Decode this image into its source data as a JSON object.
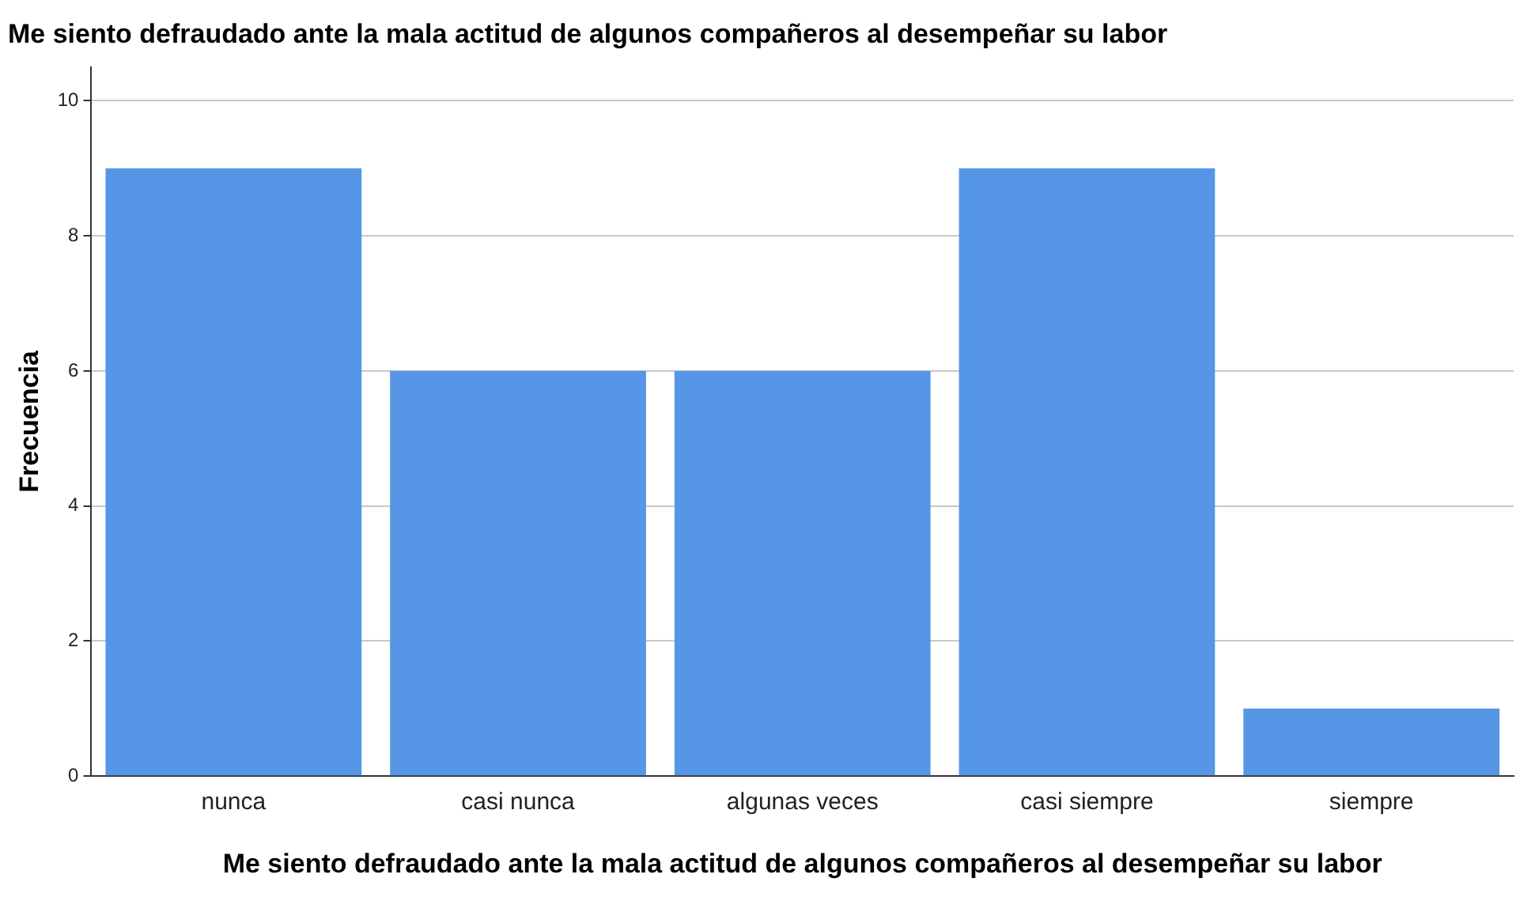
{
  "chart_data": {
    "type": "bar",
    "title": "Me siento defraudado ante la mala actitud de algunos compañeros al desempeñar su labor",
    "xlabel": "Me siento defraudado ante la mala actitud de algunos compañeros al desempeñar su labor",
    "ylabel": "Frecuencia",
    "categories": [
      "nunca",
      "casi nunca",
      "algunas veces",
      "casi siempre",
      "siempre"
    ],
    "values": [
      9,
      6,
      6,
      9,
      1
    ],
    "color": "#5596e6",
    "ylim": [
      0,
      10.5
    ],
    "yticks": [
      0,
      2,
      4,
      6,
      8,
      10
    ],
    "grid": "y",
    "legend": false
  }
}
